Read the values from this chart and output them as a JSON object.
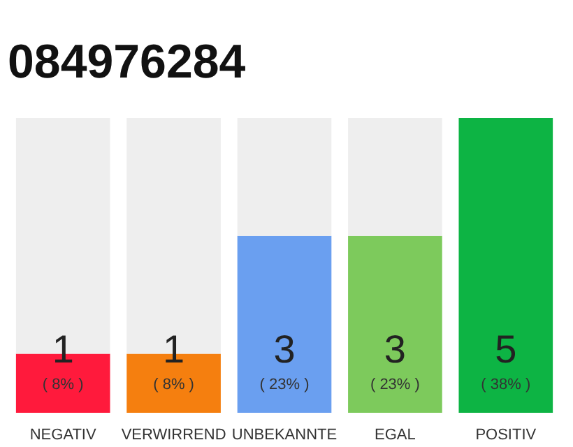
{
  "chart_data": {
    "type": "bar",
    "title": "084976284",
    "stacked": true,
    "categories": [
      "NEGATIV",
      "VERWIRREND",
      "UNBEKANNTE",
      "EGAL",
      "POSITIV"
    ],
    "ylim": [
      0,
      5
    ],
    "tick_labels": "x",
    "grid": false,
    "series": [
      {
        "colors": [
          "#ff1a3c",
          "#f57f0f",
          "#6a9ff0",
          "#7dca5c",
          "#0db444"
        ],
        "values": [
          1,
          1,
          3,
          3,
          5
        ],
        "value_labels": [
          "1",
          "1",
          "3",
          "3",
          "5"
        ]
      },
      {
        "color": "#eeeeee",
        "values": [
          4,
          4,
          2,
          2,
          0
        ]
      }
    ],
    "annotations": [
      {
        "text": "( 8% )",
        "x": "NEGATIV",
        "y": 0
      },
      {
        "text": "( 8% )",
        "x": "VERWIRREND",
        "y": 0
      },
      {
        "text": "( 23% )",
        "x": "UNBEKANNTE",
        "y": 0
      },
      {
        "text": "( 23% )",
        "x": "EGAL",
        "y": 0
      },
      {
        "text": "( 38% )",
        "x": "POSITIV",
        "y": 0
      }
    ]
  }
}
